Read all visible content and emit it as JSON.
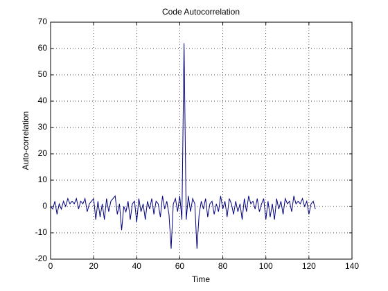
{
  "chart_data": {
    "type": "line",
    "title": "Code Autocorrelation",
    "xlabel": "Time",
    "ylabel": "Auto-correlation",
    "x": [
      0,
      1,
      2,
      3,
      4,
      5,
      6,
      7,
      8,
      9,
      10,
      11,
      12,
      13,
      14,
      15,
      16,
      17,
      18,
      19,
      20,
      21,
      22,
      23,
      24,
      25,
      26,
      27,
      28,
      29,
      30,
      31,
      32,
      33,
      34,
      35,
      36,
      37,
      38,
      39,
      40,
      41,
      42,
      43,
      44,
      45,
      46,
      47,
      48,
      49,
      50,
      51,
      52,
      53,
      54,
      55,
      56,
      57,
      58,
      59,
      60,
      61,
      62,
      63,
      64,
      65,
      66,
      67,
      68,
      69,
      70,
      71,
      72,
      73,
      74,
      75,
      76,
      77,
      78,
      79,
      80,
      81,
      82,
      83,
      84,
      85,
      86,
      87,
      88,
      89,
      90,
      91,
      92,
      93,
      94,
      95,
      96,
      97,
      98,
      99,
      100,
      101,
      102,
      103,
      104,
      105,
      106,
      107,
      108,
      109,
      110,
      111,
      112,
      113,
      114,
      115,
      116,
      117,
      118,
      119,
      120,
      121,
      122,
      123
    ],
    "series": [
      {
        "name": "autocorrelation",
        "color": "#00007f",
        "values": [
          0,
          -1,
          2,
          -3,
          1,
          -1,
          2,
          0,
          3,
          1,
          2,
          1,
          3,
          -1,
          2,
          1,
          3,
          -2,
          1,
          2,
          3,
          -5,
          2,
          -4,
          1,
          -5,
          3,
          -2,
          2,
          3,
          4,
          -3,
          1,
          -9,
          0,
          -2,
          2,
          -5,
          1,
          2,
          -6,
          3,
          -2,
          1,
          -5,
          2,
          -1,
          3,
          -3,
          2,
          1,
          -4,
          4,
          -1,
          2,
          -3,
          -16,
          1,
          3,
          -2,
          4,
          -5,
          62,
          -5,
          4,
          -2,
          3,
          1,
          -16,
          -3,
          2,
          -1,
          3,
          -4,
          1,
          2,
          -3,
          1,
          -2,
          4,
          -1,
          2,
          -4,
          3,
          1,
          -3,
          2,
          -2,
          1,
          -5,
          3,
          -2,
          4,
          1,
          2,
          -1,
          3,
          -2,
          1,
          3,
          -5,
          2,
          -4,
          1,
          -5,
          3,
          -1,
          2,
          -3,
          3,
          1,
          2,
          -2,
          4,
          1,
          2,
          1,
          3,
          0,
          2,
          -3,
          1,
          2,
          -1
        ]
      }
    ],
    "xlim": [
      0,
      140
    ],
    "ylim": [
      -20,
      70
    ],
    "xticks": [
      0,
      20,
      40,
      60,
      80,
      100,
      120,
      140
    ],
    "yticks": [
      -20,
      -10,
      0,
      10,
      20,
      30,
      40,
      50,
      60,
      70
    ],
    "grid": true
  }
}
